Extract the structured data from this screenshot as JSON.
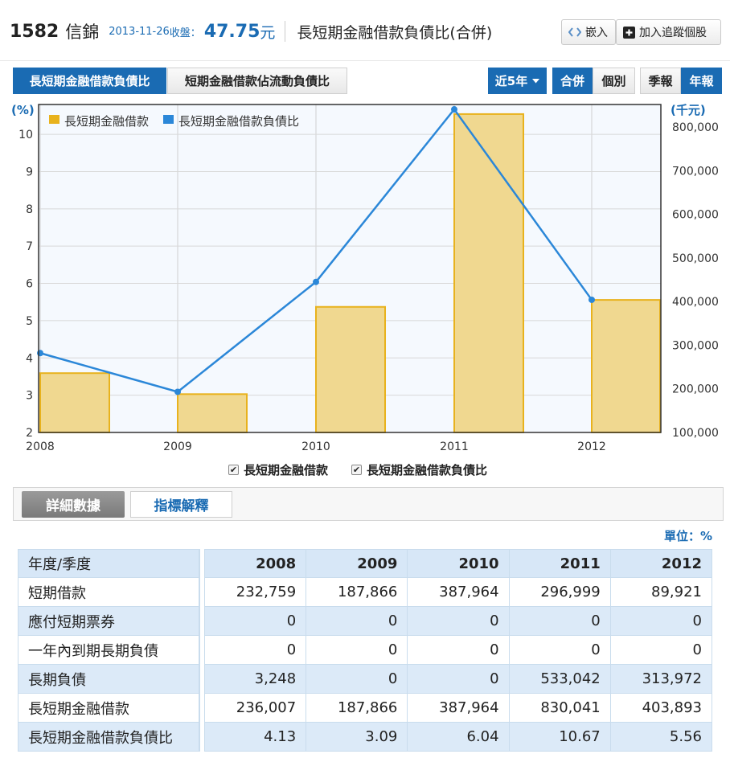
{
  "header": {
    "stock_code": "1582",
    "stock_name": "信錦",
    "date": "2013-11-26",
    "close_label": "收盤：",
    "price": "47.75",
    "price_unit": "元",
    "page_title": "長短期金融借款負債比(合併)",
    "embed_label": "嵌入",
    "embed_icon": "code-arrows-icon",
    "track_label": "加入追蹤個股",
    "track_icon": "plus-square-icon"
  },
  "tabs": [
    {
      "label": "長短期金融借款負債比",
      "active": true
    },
    {
      "label": "短期金融借款佔流動負債比",
      "active": false
    }
  ],
  "controls": {
    "range": "近5年",
    "consolidated": "合併",
    "individual": "個別",
    "quarterly": "季報",
    "annual": "年報",
    "active_color": "#1a6bb3"
  },
  "chart_data": {
    "type": "bar+line",
    "categories": [
      "2008",
      "2009",
      "2010",
      "2011",
      "2012"
    ],
    "series": [
      {
        "name": "長短期金融借款",
        "type": "bar",
        "axis": "right",
        "color": "#e8b21d",
        "fill": "#f0d890",
        "values": [
          236007,
          187866,
          387964,
          830041,
          403893
        ]
      },
      {
        "name": "長短期金融借款負債比",
        "type": "line",
        "axis": "left",
        "color": "#2b87d8",
        "values": [
          4.13,
          3.09,
          6.04,
          10.67,
          5.56
        ]
      }
    ],
    "left_axis": {
      "label": "(%)",
      "range": [
        2,
        10.8
      ],
      "ticks": [
        2,
        3,
        4,
        5,
        6,
        7,
        8,
        9,
        10
      ]
    },
    "right_axis": {
      "label": "(千元)",
      "range": [
        100000,
        852000
      ],
      "ticks": [
        "100,000",
        "200,000",
        "300,000",
        "400,000",
        "500,000",
        "600,000",
        "700,000",
        "800,000"
      ]
    },
    "grid": true,
    "legend_position": "top-left"
  },
  "legend_toggles": [
    {
      "label": "長短期金融借款",
      "checked": true
    },
    {
      "label": "長短期金融借款負債比",
      "checked": true
    }
  ],
  "detail_tabs": {
    "details": "詳細數據",
    "explain": "指標解釋"
  },
  "unit_label": "單位：%",
  "table": {
    "corner": "年度/季度",
    "columns": [
      "2008",
      "2009",
      "2010",
      "2011",
      "2012"
    ],
    "rows": [
      {
        "label": "短期借款",
        "values": [
          "232,759",
          "187,866",
          "387,964",
          "296,999",
          "89,921"
        ]
      },
      {
        "label": "應付短期票券",
        "values": [
          "0",
          "0",
          "0",
          "0",
          "0"
        ]
      },
      {
        "label": "一年內到期長期負債",
        "values": [
          "0",
          "0",
          "0",
          "0",
          "0"
        ]
      },
      {
        "label": "長期負債",
        "values": [
          "3,248",
          "0",
          "0",
          "533,042",
          "313,972"
        ]
      },
      {
        "label": "長短期金融借款",
        "values": [
          "236,007",
          "187,866",
          "387,964",
          "830,041",
          "403,893"
        ]
      },
      {
        "label": "長短期金融借款負債比",
        "values": [
          "4.13",
          "3.09",
          "6.04",
          "10.67",
          "5.56"
        ]
      }
    ]
  }
}
